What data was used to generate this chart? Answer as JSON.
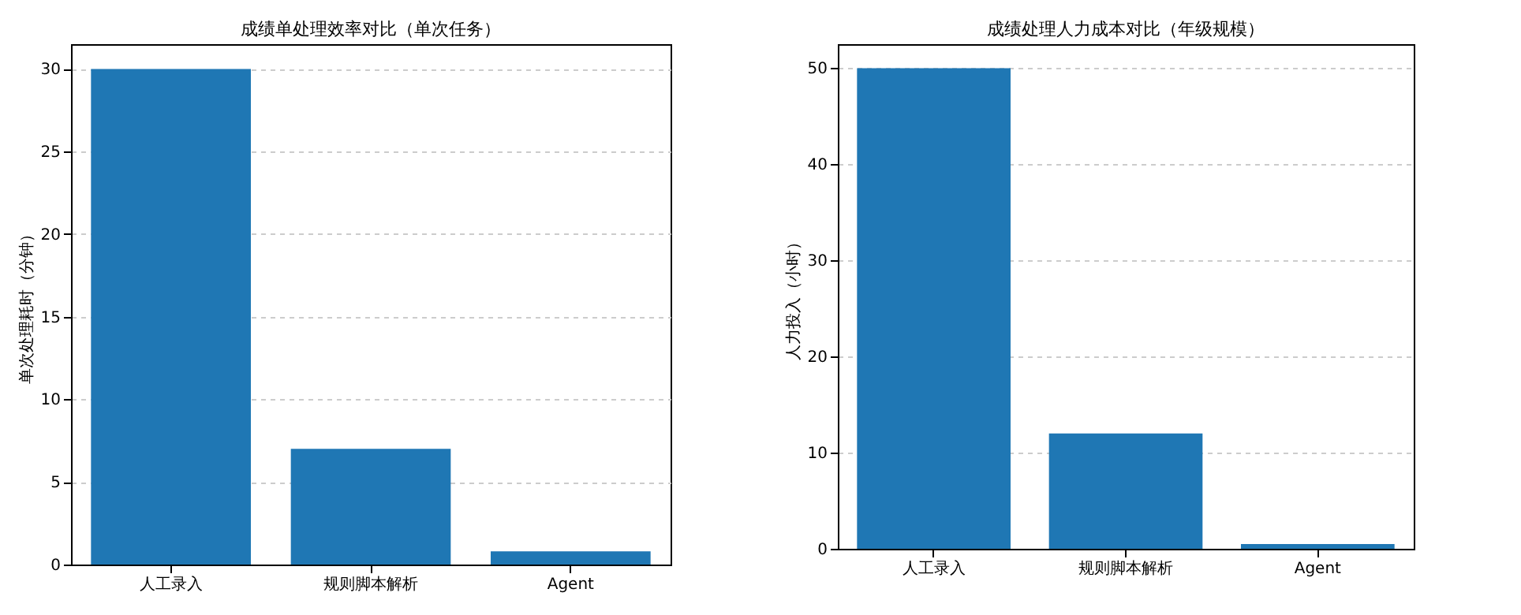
{
  "chart_data": [
    {
      "type": "bar",
      "title": "成绩单处理效率对比（单次任务）",
      "ylabel": "单次处理耗时（分钟）",
      "categories": [
        "人工录入",
        "规则脚本解析",
        "Agent"
      ],
      "series": [
        {
          "color": "#1f77b4",
          "values": [
            30,
            7,
            0.8
          ]
        }
      ],
      "ylim": [
        0,
        31.5
      ],
      "yticks": [
        0,
        5,
        10,
        15,
        20,
        25,
        30
      ],
      "grid": "y",
      "legend": false
    },
    {
      "type": "bar",
      "title": "成绩处理人力成本对比（年级规模）",
      "ylabel": "人力投入（小时）",
      "categories": [
        "人工录入",
        "规则脚本解析",
        "Agent"
      ],
      "series": [
        {
          "color": "#1f77b4",
          "values": [
            50,
            12,
            0.5
          ]
        }
      ],
      "ylim": [
        0,
        52.5
      ],
      "yticks": [
        0,
        10,
        20,
        30,
        40,
        50
      ],
      "grid": "y",
      "legend": false
    }
  ]
}
